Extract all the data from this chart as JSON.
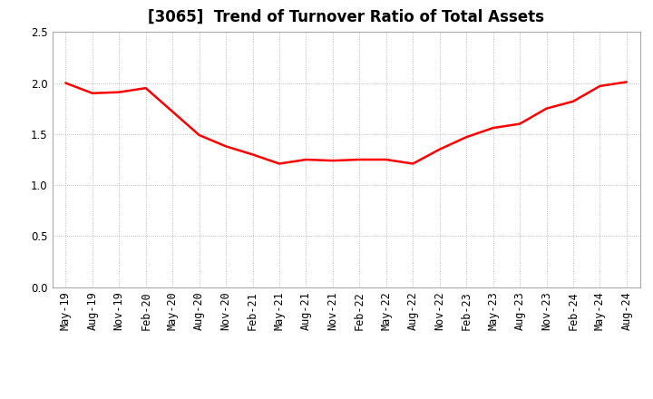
{
  "title": "[3065]  Trend of Turnover Ratio of Total Assets",
  "line_color": "#FF0000",
  "line_width": 1.8,
  "background_color": "#FFFFFF",
  "grid_color": "#AAAAAA",
  "ylim": [
    0.0,
    2.5
  ],
  "yticks": [
    0.0,
    0.5,
    1.0,
    1.5,
    2.0,
    2.5
  ],
  "x_labels": [
    "May-19",
    "Aug-19",
    "Nov-19",
    "Feb-20",
    "May-20",
    "Aug-20",
    "Nov-20",
    "Feb-21",
    "May-21",
    "Aug-21",
    "Nov-21",
    "Feb-22",
    "May-22",
    "Aug-22",
    "Nov-22",
    "Feb-23",
    "May-23",
    "Aug-23",
    "Nov-23",
    "Feb-24",
    "May-24",
    "Aug-24"
  ],
  "values": [
    2.0,
    1.9,
    1.91,
    1.95,
    1.72,
    1.49,
    1.38,
    1.3,
    1.21,
    1.25,
    1.24,
    1.25,
    1.25,
    1.21,
    1.35,
    1.47,
    1.56,
    1.6,
    1.75,
    1.82,
    1.97,
    2.01
  ],
  "title_fontsize": 12,
  "tick_fontsize": 8.5
}
